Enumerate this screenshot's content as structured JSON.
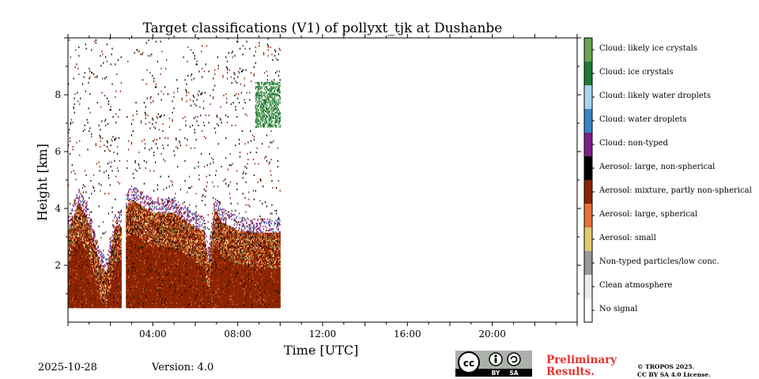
{
  "chart_data": {
    "type": "heatmap",
    "title": "Target classifications (V1) of pollyxt_tjk at Dushanbe",
    "xlabel": "Time [UTC]",
    "ylabel": "Height [km]",
    "x_range_hours": [
      0,
      24
    ],
    "y_range_km": [
      0,
      10
    ],
    "x_ticks": [
      "04:00",
      "08:00",
      "12:00",
      "16:00",
      "20:00"
    ],
    "x_tick_hours": [
      4,
      8,
      12,
      16,
      20
    ],
    "y_ticks": [
      "2",
      "4",
      "6",
      "8"
    ],
    "y_tick_values": [
      2,
      4,
      6,
      8
    ],
    "data_end_hour": 10.0,
    "data_gap_hours": [
      2.5,
      2.7
    ],
    "lowest_range_km": 0.5,
    "boundary_layer_top_km": [
      [
        0.0,
        3.2
      ],
      [
        0.5,
        4.2
      ],
      [
        1.0,
        3.4
      ],
      [
        1.5,
        2.0
      ],
      [
        1.8,
        1.7
      ],
      [
        2.2,
        3.3
      ],
      [
        2.5,
        3.4
      ],
      [
        2.7,
        4.0
      ],
      [
        3.0,
        4.3
      ],
      [
        4.0,
        3.8
      ],
      [
        5.0,
        3.8
      ],
      [
        6.0,
        3.3
      ],
      [
        6.4,
        3.2
      ],
      [
        6.6,
        2.0
      ],
      [
        6.9,
        4.0
      ],
      [
        7.2,
        3.5
      ],
      [
        8.0,
        3.2
      ],
      [
        9.0,
        3.1
      ],
      [
        10.0,
        3.1
      ]
    ],
    "legend": [
      {
        "label": "Cloud: likely ice crystals",
        "color": "#6aa54f"
      },
      {
        "label": "Cloud: ice crystals",
        "color": "#1f7a3a"
      },
      {
        "label": "Cloud: likely water droplets",
        "color": "#a9d5f3"
      },
      {
        "label": "Cloud: water droplets",
        "color": "#3787c6"
      },
      {
        "label": "Cloud: non-typed",
        "color": "#7e1f88"
      },
      {
        "label": "Aerosol: large, non-spherical",
        "color": "#000000"
      },
      {
        "label": "Aerosol: mixture, partly non-spherical",
        "color": "#8b2400"
      },
      {
        "label": "Aerosol: large, spherical",
        "color": "#e8713a"
      },
      {
        "label": "Aerosol: small",
        "color": "#e2c86e"
      },
      {
        "label": "Non-typed particles/low conc.",
        "color": "#9a9a9a"
      },
      {
        "label": "Clean atmosphere",
        "color": "#ececec"
      },
      {
        "label": "No signal",
        "color": "#ffffff"
      }
    ]
  },
  "footer": {
    "date": "2025-10-28",
    "version": "Version: 4.0",
    "license_badge": [
      "BY",
      "SA"
    ],
    "preliminary_1": "Preliminary",
    "preliminary_2": "Results.",
    "copyright_1": "© TROPOS 2025.",
    "copyright_2": "CC BY SA 4.0 License."
  }
}
